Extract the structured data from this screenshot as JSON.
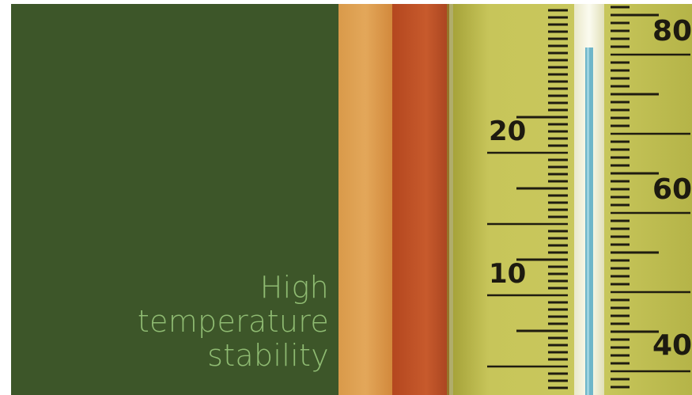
{
  "headline": {
    "line1": "High",
    "line2": "temperature",
    "line3": "stability"
  },
  "thermometer": {
    "celsius_labels": [
      "20",
      "10"
    ],
    "fahrenheit_labels": [
      "80",
      "60",
      "40"
    ],
    "mercury_color": "#6fb6c9"
  },
  "colors": {
    "panel": "#3d5629",
    "headline": "#8fbb72"
  }
}
